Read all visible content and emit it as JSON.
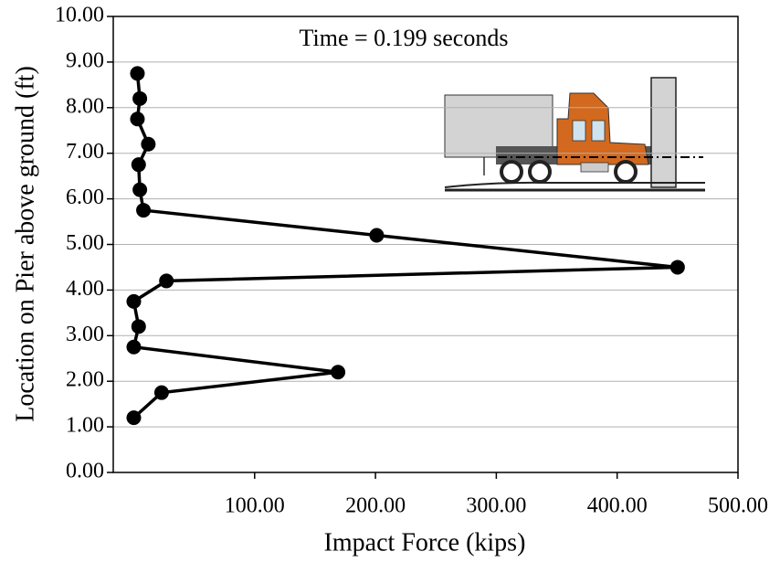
{
  "chart_data": {
    "type": "line",
    "annotation": "Time = 0.199 seconds",
    "x_label": "Impact Force (kips)",
    "y_label": "Location on Pier above ground (ft)",
    "series": [
      {
        "color": "#000000",
        "x": [
          3,
          5,
          3,
          12,
          4,
          5,
          8,
          201,
          450,
          27,
          0,
          4,
          0,
          169,
          23,
          0
        ],
        "values": [
          8.75,
          8.2,
          7.75,
          7.2,
          6.75,
          6.2,
          5.75,
          5.2,
          4.5,
          4.2,
          3.75,
          3.2,
          2.75,
          2.2,
          1.75,
          1.2
        ]
      }
    ],
    "xlim": [
      -17,
      500
    ],
    "xticks": [
      {
        "value": 100,
        "label": "100.00"
      },
      {
        "value": 200,
        "label": "200.00"
      },
      {
        "value": 300,
        "label": "300.00"
      },
      {
        "value": 400,
        "label": "400.00"
      },
      {
        "value": 500,
        "label": "500.00"
      }
    ],
    "ylim": [
      0,
      10
    ],
    "yticks": [
      {
        "value": 0,
        "label": "0.00"
      },
      {
        "value": 1,
        "label": "1.00"
      },
      {
        "value": 2,
        "label": "2.00"
      },
      {
        "value": 3,
        "label": "3.00"
      },
      {
        "value": 4,
        "label": "4.00"
      },
      {
        "value": 5,
        "label": "5.00"
      },
      {
        "value": 6,
        "label": "6.00"
      },
      {
        "value": 7,
        "label": "7.00"
      },
      {
        "value": 8,
        "label": "8.00"
      },
      {
        "value": 9,
        "label": "9.00"
      },
      {
        "value": 10,
        "label": "10.00"
      }
    ],
    "grid": true
  }
}
